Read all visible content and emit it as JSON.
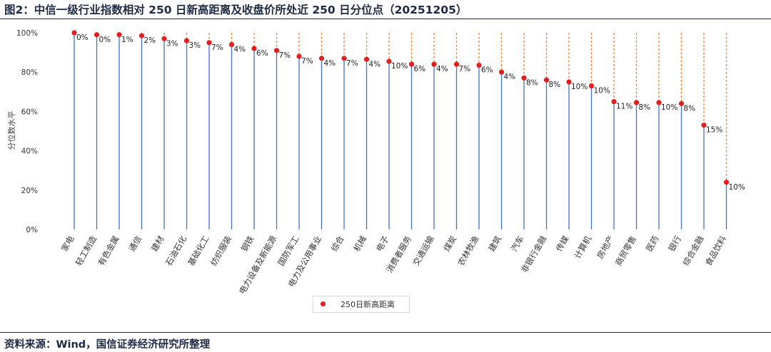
{
  "header": {
    "title": "图2：中信一级行业指数相对 250 日新高距离及收盘价所处近 250 日分位点（20251205）"
  },
  "footer": {
    "source": "资料来源：Wind，国信证券经济研究所整理"
  },
  "colors": {
    "stem": "#4472c4",
    "gap_line": "#ed7d31",
    "dot": "#e41e1e",
    "rule": "#1f2a44"
  },
  "chart_data": {
    "type": "scatter",
    "ylabel": "分位数水平",
    "yticks": [
      "0%",
      "20%",
      "40%",
      "60%",
      "80%",
      "100%"
    ],
    "ylim": [
      0,
      100
    ],
    "grid": false,
    "legend": {
      "position": "bottom",
      "label": "250日新高距离"
    },
    "categories": [
      "家电",
      "轻工制造",
      "有色金属",
      "通信",
      "建材",
      "石油石化",
      "基础化工",
      "纺织服装",
      "钢铁",
      "电力设备及新能源",
      "国防军工",
      "电力及公用事业",
      "综合",
      "机械",
      "电子",
      "消费者服务",
      "交通运输",
      "煤炭",
      "农林牧渔",
      "建筑",
      "汽车",
      "非银行金融",
      "传媒",
      "计算机",
      "房地产",
      "商贸零售",
      "医药",
      "银行",
      "综合金融",
      "食品饮料"
    ],
    "series": [
      {
        "name": "250日新高距离",
        "values": [
          100,
          99,
          99,
          98.5,
          97,
          96,
          95,
          94,
          92,
          91,
          88,
          87,
          87,
          86.5,
          85.5,
          84,
          84,
          84,
          83.5,
          80,
          77,
          76,
          75,
          73,
          65,
          64.5,
          64.5,
          64,
          53,
          24
        ],
        "labels": [
          "0%",
          "0%",
          "1%",
          "2%",
          "3%",
          "3%",
          "7%",
          "4%",
          "6%",
          "7%",
          "7%",
          "4%",
          "7%",
          "4%",
          "10%",
          "6%",
          "4%",
          "7%",
          "6%",
          "4%",
          "8%",
          "8%",
          "10%",
          "10%",
          "11%",
          "8%",
          "10%",
          "8%",
          "15%",
          "10%"
        ]
      }
    ]
  }
}
